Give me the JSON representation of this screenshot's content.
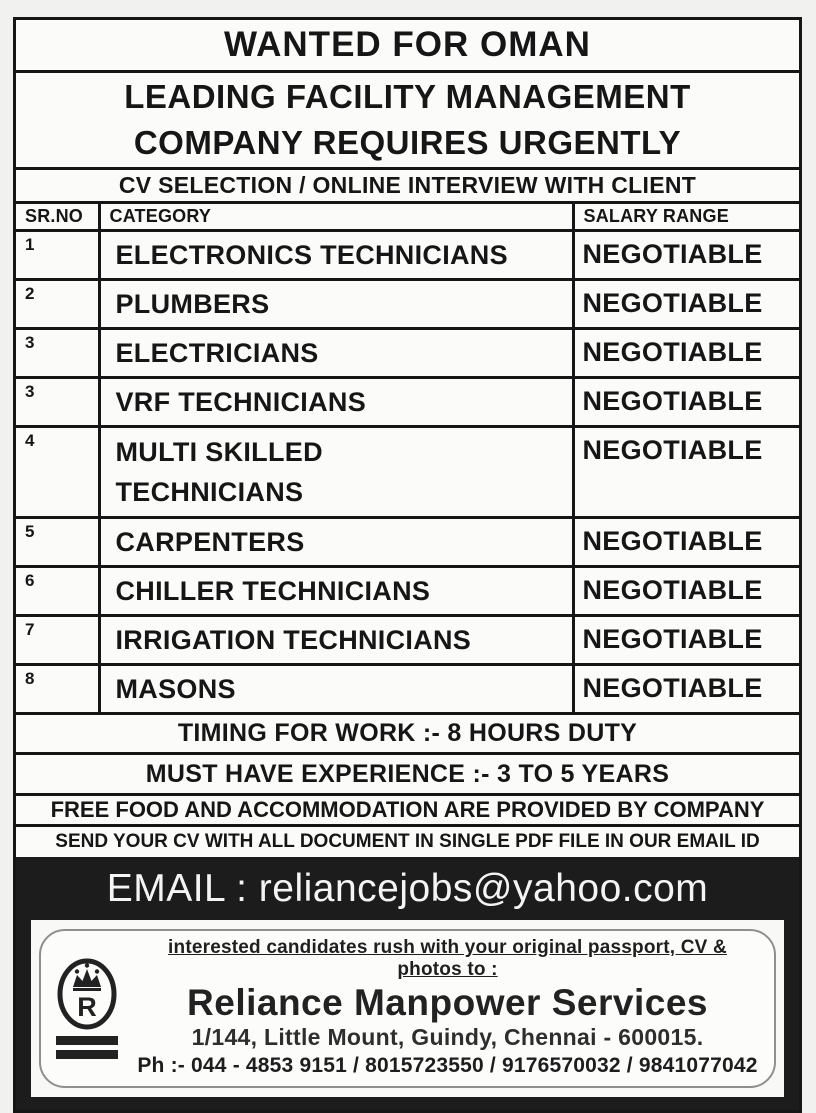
{
  "ad": {
    "title": "WANTED FOR OMAN",
    "subtitle_line1": "LEADING FACILITY MANAGEMENT",
    "subtitle_line2": "COMPANY REQUIRES URGENTLY",
    "selection_note": "CV SELECTION / ONLINE INTERVIEW WITH CLIENT",
    "table": {
      "headers": [
        "SR.NO",
        "CATEGORY",
        "SALARY RANGE"
      ],
      "rows": [
        {
          "sr": "1",
          "category": "ELECTRONICS TECHNICIANS",
          "salary": "NEGOTIABLE",
          "tall": false
        },
        {
          "sr": "2",
          "category": "PLUMBERS",
          "salary": "NEGOTIABLE",
          "tall": false
        },
        {
          "sr": "3",
          "category": "ELECTRICIANS",
          "salary": "NEGOTIABLE",
          "tall": false
        },
        {
          "sr": "3",
          "category": "VRF TECHNICIANS",
          "salary": "NEGOTIABLE",
          "tall": false
        },
        {
          "sr": "4",
          "category": "MULTI SKILLED\nTECHNICIANS",
          "salary": "NEGOTIABLE",
          "tall": true
        },
        {
          "sr": "5",
          "category": "CARPENTERS",
          "salary": "NEGOTIABLE",
          "tall": false
        },
        {
          "sr": "6",
          "category": "CHILLER TECHNICIANS",
          "salary": "NEGOTIABLE",
          "tall": false
        },
        {
          "sr": "7",
          "category": "IRRIGATION TECHNICIANS",
          "salary": "NEGOTIABLE",
          "tall": false
        },
        {
          "sr": "8",
          "category": "MASONS",
          "salary": "NEGOTIABLE",
          "tall": false
        }
      ]
    },
    "notes": [
      "TIMING FOR WORK :- 8 HOURS DUTY",
      "MUST HAVE EXPERIENCE :- 3 TO 5 YEARS",
      "FREE FOOD AND ACCOMMODATION ARE PROVIDED BY COMPANY",
      "SEND YOUR CV WITH ALL DOCUMENT IN SINGLE PDF FILE IN OUR EMAIL ID"
    ],
    "email_label": "EMAIL : reliancejobs@yahoo.com",
    "footer": {
      "tagline": "interested candidates rush with your original passport, CV & photos to :",
      "company_name": "Reliance Manpower Services",
      "address": "1/144, Little Mount, Guindy, Chennai - 600015.",
      "phone": "Ph :- 044 - 4853 9151 / 8015723550 / 9176570032 / 9841077042",
      "logo_letter": "R"
    },
    "colors": {
      "ink": "#161616",
      "email_bar_bg": "#1c1c1c",
      "paper": "#fbfbfa"
    }
  }
}
